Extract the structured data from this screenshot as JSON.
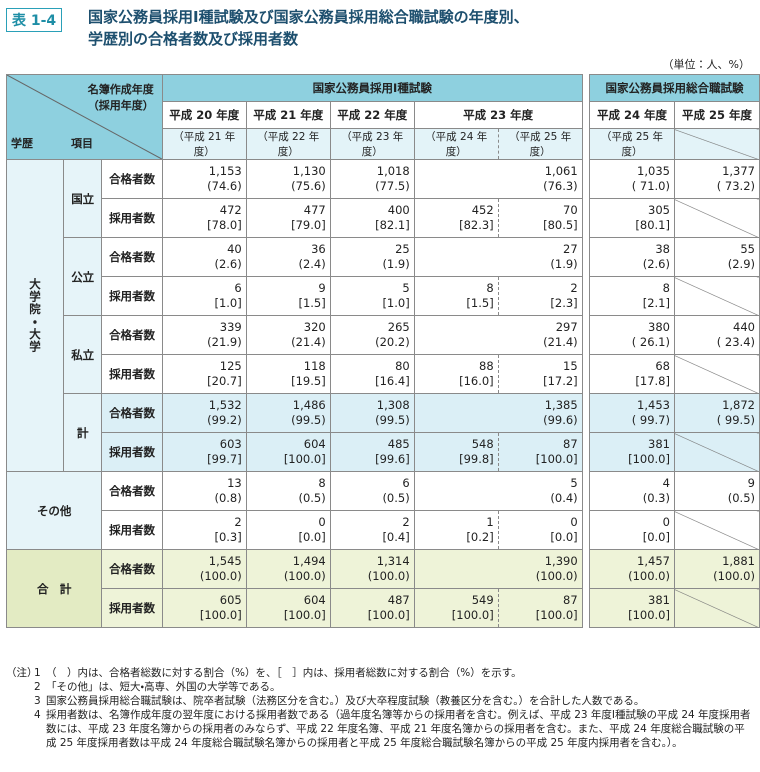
{
  "title": {
    "badge": "表 1-4",
    "line1": "国家公務員採用Ⅰ種試験及び国家公務員採用総合職試験の年度別、",
    "line2": "学歴別の合格者数及び採用者数"
  },
  "unit": "（単位：人、%）",
  "table": {
    "corner": {
      "top": "名簿作成年度",
      "top2": "（採用年度）",
      "left": "学歴",
      "mid": "項目"
    },
    "exams": [
      "国家公務員採用Ⅰ種試験",
      "国家公務員採用総合職試験"
    ],
    "years": [
      "平成 20 年度",
      "平成 21 年度",
      "平成 22 年度",
      "平成 23 年度",
      "平成 24 年度",
      "平成 25 年度"
    ],
    "sub_years": [
      "（平成 21 年度）",
      "（平成 22 年度）",
      "（平成 23 年度）",
      "（平成 24 年度）",
      "（平成 25 年度）",
      "（平成 25 年度）"
    ],
    "items": [
      "合格者数",
      "採用者数"
    ],
    "groups": [
      {
        "label": "大学院・大学",
        "subgroups": [
          {
            "label": "国立",
            "passed": [
              [
                "1,153",
                "(74.6)"
              ],
              [
                "1,130",
                "(75.6)"
              ],
              [
                "1,018",
                "(77.5)"
              ],
              [
                "1,061",
                "(76.3)"
              ],
              [
                "1,035",
                "( 71.0)"
              ],
              [
                "1,377",
                "( 73.2)"
              ]
            ],
            "hired": [
              [
                "472",
                "[78.0]"
              ],
              [
                "477",
                "[79.0]"
              ],
              [
                "400",
                "[82.1]"
              ],
              [
                "452",
                "[82.3]"
              ],
              [
                "70",
                "[80.5]"
              ],
              [
                "305",
                "[80.1]"
              ]
            ]
          },
          {
            "label": "公立",
            "passed": [
              [
                "40",
                "(2.6)"
              ],
              [
                "36",
                "(2.4)"
              ],
              [
                "25",
                "(1.9)"
              ],
              [
                "27",
                "(1.9)"
              ],
              [
                "38",
                "(2.6)"
              ],
              [
                "55",
                "(2.9)"
              ]
            ],
            "hired": [
              [
                "6",
                "[1.0]"
              ],
              [
                "9",
                "[1.5]"
              ],
              [
                "5",
                "[1.0]"
              ],
              [
                "8",
                "[1.5]"
              ],
              [
                "2",
                "[2.3]"
              ],
              [
                "8",
                "[2.1]"
              ]
            ]
          },
          {
            "label": "私立",
            "passed": [
              [
                "339",
                "(21.9)"
              ],
              [
                "320",
                "(21.4)"
              ],
              [
                "265",
                "(20.2)"
              ],
              [
                "297",
                "(21.4)"
              ],
              [
                "380",
                "( 26.1)"
              ],
              [
                "440",
                "( 23.4)"
              ]
            ],
            "hired": [
              [
                "125",
                "[20.7]"
              ],
              [
                "118",
                "[19.5]"
              ],
              [
                "80",
                "[16.4]"
              ],
              [
                "88",
                "[16.0]"
              ],
              [
                "15",
                "[17.2]"
              ],
              [
                "68",
                "[17.8]"
              ]
            ]
          },
          {
            "label": "計",
            "passed": [
              [
                "1,532",
                "(99.2)"
              ],
              [
                "1,486",
                "(99.5)"
              ],
              [
                "1,308",
                "(99.5)"
              ],
              [
                "1,385",
                "(99.6)"
              ],
              [
                "1,453",
                "( 99.7)"
              ],
              [
                "1,872",
                "( 99.5)"
              ]
            ],
            "hired": [
              [
                "603",
                "[99.7]"
              ],
              [
                "604",
                "[100.0]"
              ],
              [
                "485",
                "[99.6]"
              ],
              [
                "548",
                "[99.8]"
              ],
              [
                "87",
                "[100.0]"
              ],
              [
                "381",
                "[100.0]"
              ]
            ]
          }
        ]
      },
      {
        "label": "その他",
        "passed": [
          [
            "13",
            "(0.8)"
          ],
          [
            "8",
            "(0.5)"
          ],
          [
            "6",
            "(0.5)"
          ],
          [
            "5",
            "(0.4)"
          ],
          [
            "4",
            "(0.3)"
          ],
          [
            "9",
            "(0.5)"
          ]
        ],
        "hired": [
          [
            "2",
            "[0.3]"
          ],
          [
            "0",
            "[0.0]"
          ],
          [
            "2",
            "[0.4]"
          ],
          [
            "1",
            "[0.2]"
          ],
          [
            "0",
            "[0.0]"
          ],
          [
            "0",
            "[0.0]"
          ]
        ]
      },
      {
        "label": "合　計",
        "passed": [
          [
            "1,545",
            "(100.0)"
          ],
          [
            "1,494",
            "(100.0)"
          ],
          [
            "1,314",
            "(100.0)"
          ],
          [
            "1,390",
            "(100.0)"
          ],
          [
            "1,457",
            "(100.0)"
          ],
          [
            "1,881",
            "(100.0)"
          ]
        ],
        "hired": [
          [
            "605",
            "[100.0]"
          ],
          [
            "604",
            "[100.0]"
          ],
          [
            "487",
            "[100.0]"
          ],
          [
            "549",
            "[100.0]"
          ],
          [
            "87",
            "[100.0]"
          ],
          [
            "381",
            "[100.0]"
          ]
        ]
      }
    ]
  },
  "notes": {
    "label": "（注）",
    "items": [
      {
        "num": "1",
        "text": "（　）内は、合格者総数に対する割合（%）を、［　］内は、採用者総数に対する割合（%）を示す。"
      },
      {
        "num": "2",
        "text": "「その他」は、短大・高専、外国の大学等である。"
      },
      {
        "num": "3",
        "text": "国家公務員採用総合職試験は、院卒者試験（法務区分を含む。）及び大卒程度試験（教養区分を含む。）を合計した人数である。"
      },
      {
        "num": "4",
        "text": "採用者数は、名簿作成年度の翌年度における採用者数である（過年度名簿等からの採用者を含む。例えば、平成 23 年度Ⅰ種試験の平成 24 年度採用者数には、平成 23 年度名簿からの採用者のみならず、平成 22 年度名簿、平成 21 年度名簿からの採用者を含む。また、平成 24 年度総合職試験の平成 25 年度採用者数は平成 24 年度総合職試験名簿からの採用者と平成 25 年度総合職試験名簿からの平成 25 年度内採用者を含む。）。"
      }
    ]
  }
}
